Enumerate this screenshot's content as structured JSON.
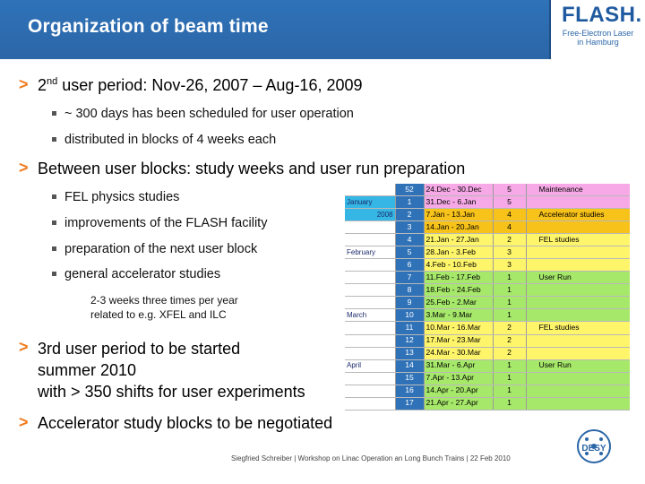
{
  "header": {
    "title": "Organization of beam time",
    "logo_main": "FLASH.",
    "logo_sub_line1": "Free-Electron Laser",
    "logo_sub_line2": "in Hamburg"
  },
  "bullets": {
    "marker": ">",
    "b1_ord": "2",
    "b1_sup": "nd",
    "b1_rest": " user period: Nov-26, 2007 – Aug-16, 2009",
    "b1_sub1": "~ 300 days has been scheduled for user operation",
    "b1_sub2": "distributed in blocks of 4 weeks each",
    "b2": "Between user blocks: study weeks and user run preparation",
    "b2_sub1": "FEL physics studies",
    "b2_sub2": "improvements of the FLASH facility",
    "b2_sub3": "preparation of the next user block",
    "b2_sub4": "general accelerator studies",
    "note_line1": "2-3 weeks three times per year",
    "note_line2": "related to e.g. XFEL and ILC",
    "b3_line1": "3rd user period to be started",
    "b3_line2": "summer 2010",
    "b3_line3": "with > 350 shifts for user experiments",
    "b4": "Accelerator study blocks to be negotiated"
  },
  "schedule": {
    "rows": [
      {
        "month": "",
        "week": "52",
        "dates": "24.Dec - 30.Dec",
        "days": "5",
        "type": "Maintenance",
        "color": "#f6a9e6"
      },
      {
        "month": "January",
        "week": "1",
        "dates": "31.Dec - 6.Jan",
        "days": "5",
        "type": "",
        "color": "#f6a9e6"
      },
      {
        "month": "2008",
        "week": "2",
        "dates": "7.Jan - 13.Jan",
        "days": "4",
        "type": "Accelerator studies",
        "color": "#f7c21a"
      },
      {
        "month": "",
        "week": "3",
        "dates": "14.Jan - 20.Jan",
        "days": "4",
        "type": "",
        "color": "#f7c21a"
      },
      {
        "month": "",
        "week": "4",
        "dates": "21.Jan - 27.Jan",
        "days": "2",
        "type": "FEL studies",
        "color": "#fff56a"
      },
      {
        "month": "February",
        "week": "5",
        "dates": "28.Jan - 3.Feb",
        "days": "3",
        "type": "",
        "color": "#fff56a"
      },
      {
        "month": "",
        "week": "6",
        "dates": "4.Feb - 10.Feb",
        "days": "3",
        "type": "",
        "color": "#fff56a"
      },
      {
        "month": "",
        "week": "7",
        "dates": "11.Feb - 17.Feb",
        "days": "1",
        "type": "User Run",
        "color": "#a6e86a"
      },
      {
        "month": "",
        "week": "8",
        "dates": "18.Feb - 24.Feb",
        "days": "1",
        "type": "",
        "color": "#a6e86a"
      },
      {
        "month": "",
        "week": "9",
        "dates": "25.Feb - 2.Mar",
        "days": "1",
        "type": "",
        "color": "#a6e86a"
      },
      {
        "month": "March",
        "week": "10",
        "dates": "3.Mar - 9.Mar",
        "days": "1",
        "type": "",
        "color": "#a6e86a"
      },
      {
        "month": "",
        "week": "11",
        "dates": "10.Mar - 16.Mar",
        "days": "2",
        "type": "FEL studies",
        "color": "#fff56a"
      },
      {
        "month": "",
        "week": "12",
        "dates": "17.Mar - 23.Mar",
        "days": "2",
        "type": "",
        "color": "#fff56a"
      },
      {
        "month": "",
        "week": "13",
        "dates": "24.Mar - 30.Mar",
        "days": "2",
        "type": "",
        "color": "#fff56a"
      },
      {
        "month": "April",
        "week": "14",
        "dates": "31.Mar - 6.Apr",
        "days": "1",
        "type": "User Run",
        "color": "#a6e86a"
      },
      {
        "month": "",
        "week": "15",
        "dates": "7.Apr - 13.Apr",
        "days": "1",
        "type": "",
        "color": "#a6e86a"
      },
      {
        "month": "",
        "week": "16",
        "dates": "14.Apr - 20.Apr",
        "days": "1",
        "type": "",
        "color": "#a6e86a"
      },
      {
        "month": "",
        "week": "17",
        "dates": "21.Apr - 27.Apr",
        "days": "1",
        "type": "",
        "color": "#a6e86a"
      }
    ]
  },
  "footer": {
    "text": "Siegfried Schreiber | Workshop on Linac Operation an Long Bunch Trains | 22 Feb 2010",
    "logo": "DESY"
  },
  "colors": {
    "header_blue": "#2b66a7",
    "arrow_orange": "#f07a1c",
    "week_cell_blue": "#2f72b8",
    "month_cell_cyan": "#35b6e4"
  }
}
